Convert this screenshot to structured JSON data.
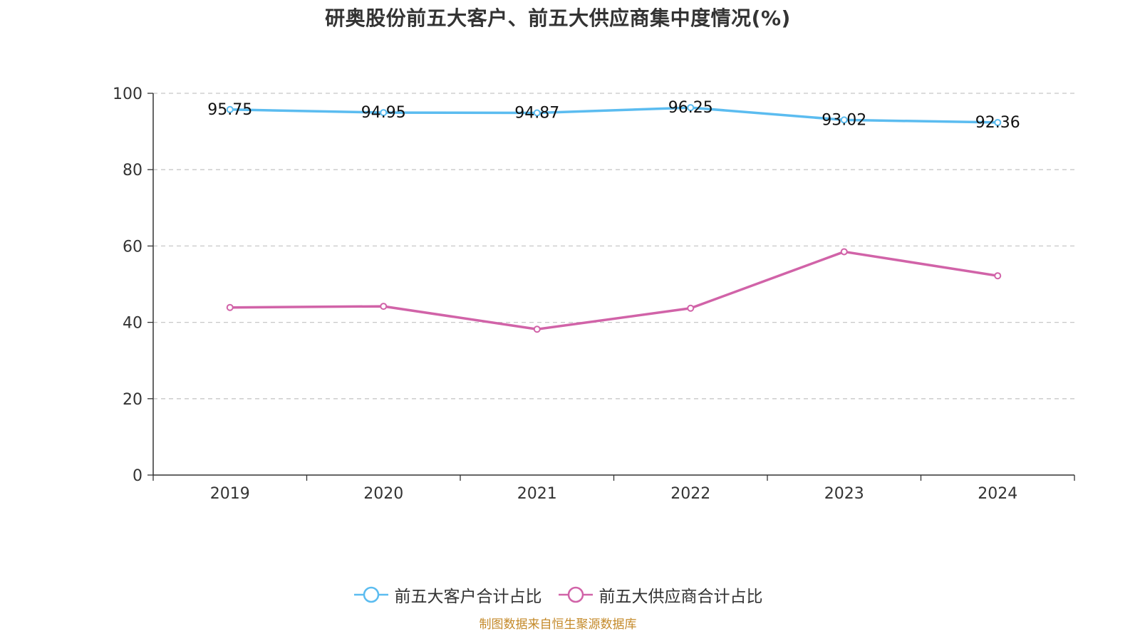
{
  "title": "研奥股份前五大客户、前五大供应商集中度情况(%)",
  "source_note": "制图数据来自恒生聚源数据库",
  "chart_data": {
    "type": "line",
    "title": "研奥股份前五大客户、前五大供应商集中度情况(%)",
    "categories": [
      "2019",
      "2020",
      "2021",
      "2022",
      "2023",
      "2024"
    ],
    "ylim": [
      0,
      100
    ],
    "yticks": [
      0,
      20,
      40,
      60,
      80,
      100
    ],
    "grid": true,
    "legend_position": "bottom",
    "series": [
      {
        "name": "前五大客户合计占比",
        "color": "#5bbcf0",
        "values": [
          95.75,
          94.95,
          94.87,
          96.25,
          93.02,
          92.36
        ],
        "value_labels": [
          "95.75",
          "94.95",
          "94.87",
          "96.25",
          "93.02",
          "92.36"
        ],
        "show_labels": true
      },
      {
        "name": "前五大供应商合计占比",
        "color": "#d163a8",
        "values": [
          43.9,
          44.2,
          38.2,
          43.7,
          58.5,
          52.2
        ],
        "show_labels": false
      }
    ]
  }
}
